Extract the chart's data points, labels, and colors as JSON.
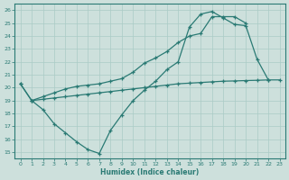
{
  "xlabel": "Humidex (Indice chaleur)",
  "xlim": [
    -0.5,
    23.5
  ],
  "ylim": [
    14.5,
    26.5
  ],
  "xticks": [
    0,
    1,
    2,
    3,
    4,
    5,
    6,
    7,
    8,
    9,
    10,
    11,
    12,
    13,
    14,
    15,
    16,
    17,
    18,
    19,
    20,
    21,
    22,
    23
  ],
  "yticks": [
    15,
    16,
    17,
    18,
    19,
    20,
    21,
    22,
    23,
    24,
    25,
    26
  ],
  "bg_color": "#cde0dc",
  "grid_color": "#aacbc6",
  "line_color": "#2a7a74",
  "line1_x": [
    0,
    1,
    2,
    3,
    4,
    5,
    6,
    7,
    8,
    9,
    10,
    11,
    12,
    13,
    14,
    15,
    16,
    17,
    18,
    19,
    20,
    21,
    22
  ],
  "line1_y": [
    20.3,
    19.0,
    18.3,
    17.2,
    16.5,
    15.8,
    15.2,
    14.9,
    16.7,
    17.9,
    19.0,
    19.8,
    20.5,
    21.4,
    22.0,
    24.7,
    25.7,
    25.9,
    25.4,
    24.9,
    24.8,
    22.2,
    20.6
  ],
  "line2_x": [
    0,
    1,
    2,
    3,
    4,
    5,
    6,
    7,
    8,
    9,
    10,
    11,
    12,
    13,
    14,
    15,
    16,
    17,
    18,
    19,
    20
  ],
  "line2_y": [
    20.3,
    19.0,
    19.3,
    19.6,
    19.9,
    20.1,
    20.2,
    20.3,
    20.5,
    20.7,
    21.2,
    21.9,
    22.3,
    22.8,
    23.5,
    24.0,
    24.2,
    25.5,
    25.5,
    25.5,
    25.0
  ],
  "line3_x": [
    1,
    2,
    3,
    4,
    5,
    6,
    7,
    8,
    9,
    10,
    11,
    12,
    13,
    14,
    15,
    16,
    17,
    18,
    19,
    20,
    21,
    22,
    23
  ],
  "line3_y": [
    19.0,
    19.1,
    19.2,
    19.3,
    19.4,
    19.5,
    19.6,
    19.7,
    19.8,
    19.9,
    20.0,
    20.1,
    20.2,
    20.3,
    20.35,
    20.4,
    20.45,
    20.5,
    20.52,
    20.55,
    20.57,
    20.6,
    20.6
  ]
}
